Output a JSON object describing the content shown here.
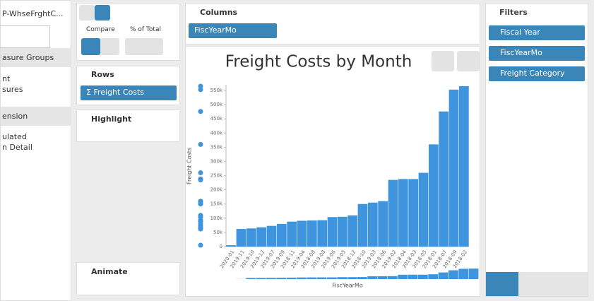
{
  "left_panel": {
    "source": "P-WhseFrghtC...",
    "section_1": "asure Groups",
    "items_1": [
      "nt",
      "sures"
    ],
    "section_2": "ension",
    "items_2": [
      "ulated",
      "n Detail"
    ]
  },
  "toolbar": {
    "compare": "Compare",
    "percent_of_total": "% of Total"
  },
  "rows": {
    "title": "Rows",
    "pill": "Σ Freight Costs"
  },
  "highlight": {
    "title": "Highlight"
  },
  "animate": {
    "title": "Animate"
  },
  "columns": {
    "title": "Columns",
    "pill": "FiscYearMo"
  },
  "filters": {
    "title": "Filters",
    "items": [
      "Fiscal Year",
      "FiscYearMo",
      "Freight Category"
    ]
  },
  "chart_data": {
    "type": "bar",
    "title": "Freight Costs by Month",
    "y_label": "Freight Costs",
    "x_label": "FiscYearMo",
    "categories": [
      "2020-01",
      "2019-11",
      "2019-10",
      "2019-12",
      "2019-07",
      "2019-09",
      "2018-11",
      "2019-04",
      "2018-08",
      "2019-08",
      "2019-06",
      "2019-05",
      "2018-12",
      "2018-10",
      "2019-03",
      "2018-06",
      "2019-02",
      "2018-04",
      "2018-03",
      "2018-05",
      "2018-01",
      "2018-07",
      "2018-09",
      "2018-02"
    ],
    "values": [
      5000,
      62000,
      64000,
      68000,
      73000,
      80000,
      88000,
      91000,
      92000,
      93000,
      104000,
      105000,
      110000,
      150000,
      155000,
      160000,
      235000,
      238000,
      238000,
      260000,
      360000,
      476000,
      553000,
      565000
    ],
    "color": "#3e95dd",
    "ylim": [
      0,
      570000
    ],
    "yticks": [
      0,
      {
        "value": 50000,
        "label": "50k"
      },
      {
        "value": 100000,
        "label": "100k"
      },
      {
        "value": 150000,
        "label": "150k"
      },
      {
        "value": 200000,
        "label": "200k"
      },
      {
        "value": 250000,
        "label": "250k"
      },
      {
        "value": 300000,
        "label": "300k"
      },
      {
        "value": 350000,
        "label": "350k"
      },
      {
        "value": 400000,
        "label": "400k"
      },
      {
        "value": 450000,
        "label": "450k"
      },
      {
        "value": 500000,
        "label": "500k"
      },
      {
        "value": 550000,
        "label": "550k"
      }
    ]
  }
}
